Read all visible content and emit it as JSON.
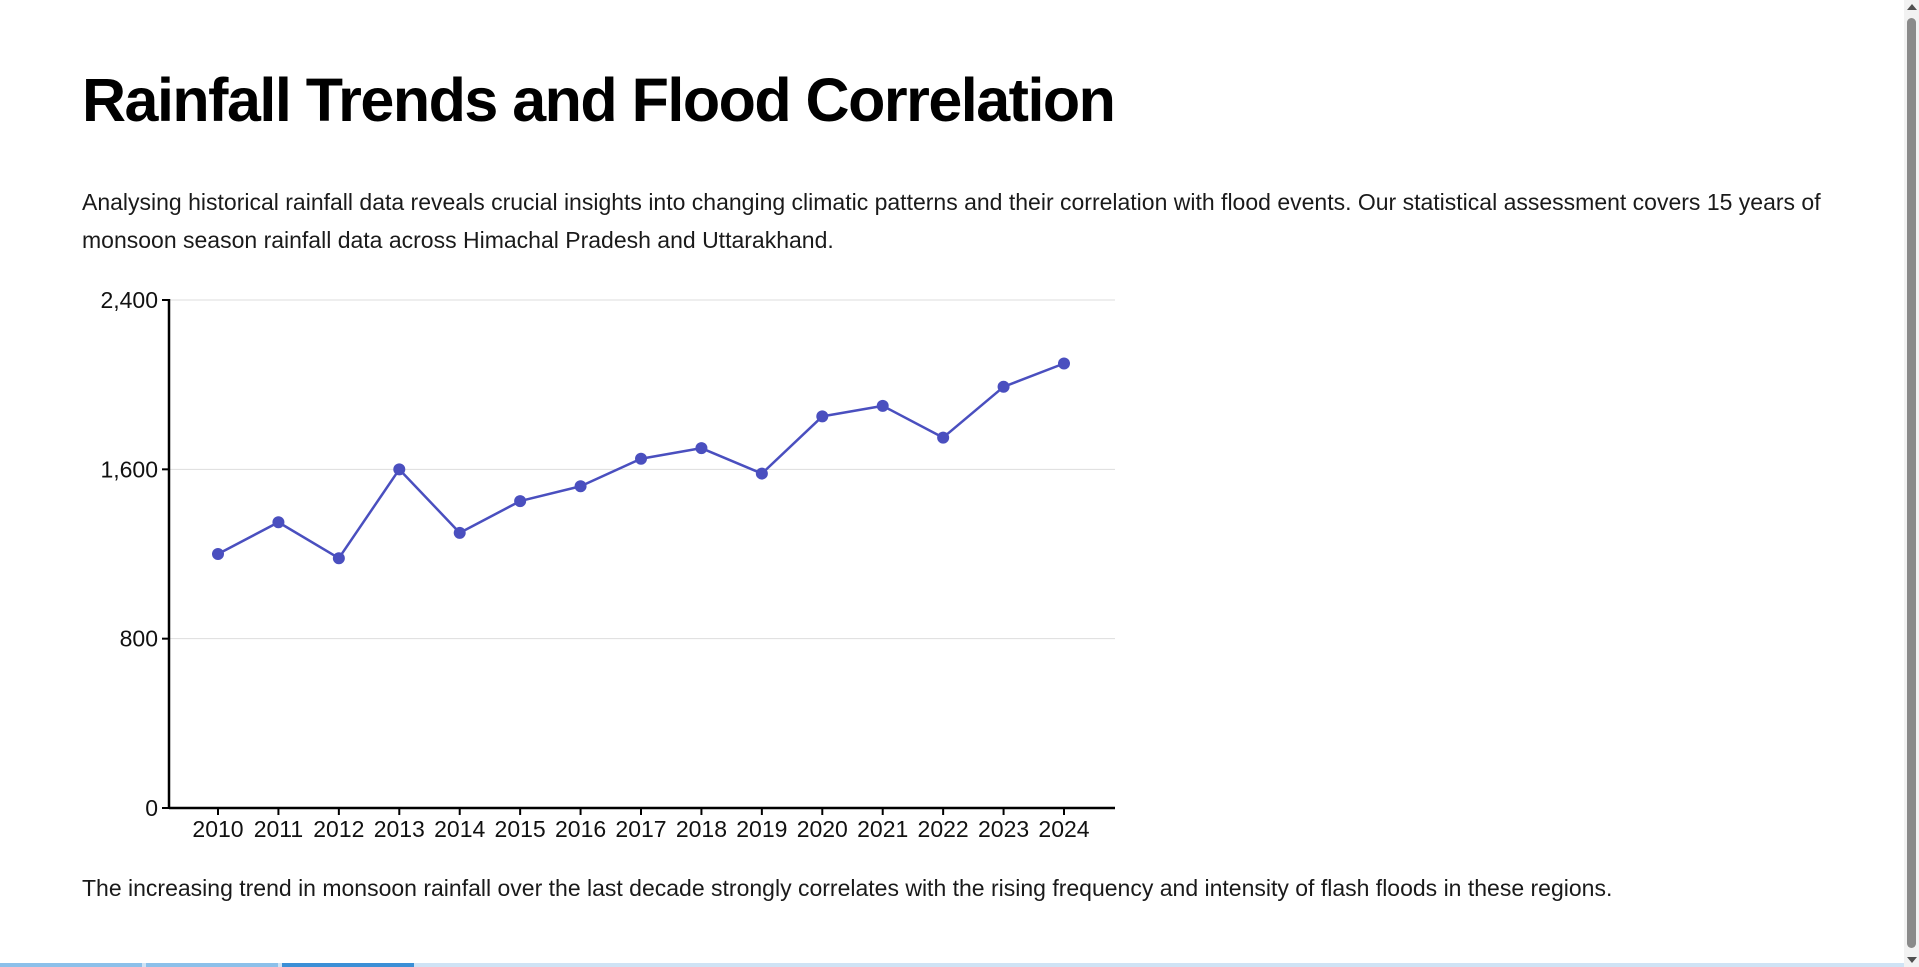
{
  "page": {
    "title": "Rainfall Trends and Flood Correlation",
    "intro": "Analysing historical rainfall data reveals crucial insights into changing climatic patterns and their correlation with flood events. Our statistical assessment covers 15 years of monsoon season rainfall data across Himachal Pradesh and Uttarakhand.",
    "conclusion": "The increasing trend in monsoon rainfall over the last decade strongly correlates with the rising frequency and intensity of flash floods in these regions."
  },
  "chart_data": {
    "type": "line",
    "title": "",
    "xlabel": "",
    "ylabel": "",
    "x": [
      "2010",
      "2011",
      "2012",
      "2013",
      "2014",
      "2015",
      "2016",
      "2017",
      "2018",
      "2019",
      "2020",
      "2021",
      "2022",
      "2023",
      "2024"
    ],
    "series": [
      {
        "values": [
          1200,
          1350,
          1180,
          1600,
          1300,
          1450,
          1520,
          1650,
          1700,
          1580,
          1850,
          1900,
          1750,
          1990,
          2100
        ]
      }
    ],
    "yticks": [
      "0",
      "800",
      "1,600",
      "2,400"
    ],
    "ytick_values": [
      0,
      800,
      1600,
      2400
    ],
    "ylim": [
      0,
      2400
    ],
    "grid": true,
    "legend": "none",
    "colors": {
      "line": "#4a4fbf",
      "marker": "#4a4fbf",
      "grid": "#dddddd",
      "axis": "#000000"
    }
  }
}
